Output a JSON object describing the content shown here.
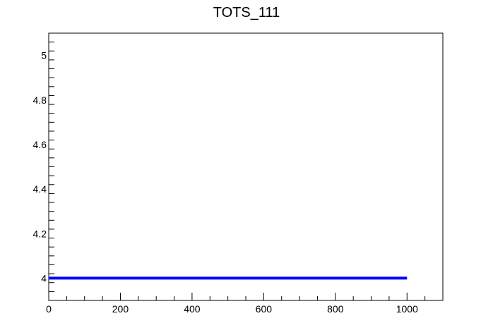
{
  "chart_data": {
    "type": "line",
    "title": "TOTS_111",
    "xlabel": "",
    "ylabel": "",
    "xlim": [
      0,
      1100
    ],
    "ylim": [
      3.9,
      5.1
    ],
    "x_ticks": [
      0,
      200,
      400,
      600,
      800,
      1000
    ],
    "y_ticks": [
      4,
      4.2,
      4.4,
      4.6,
      4.8,
      5
    ],
    "x_tick_labels": [
      "0",
      "200",
      "400",
      "600",
      "800",
      "1000"
    ],
    "y_tick_labels": [
      "4",
      "4.2",
      "4.4",
      "4.6",
      "4.8",
      "5"
    ],
    "grid": false,
    "series": [
      {
        "color": "#0000ff",
        "x": [
          0,
          1000
        ],
        "y": [
          4,
          4
        ]
      }
    ]
  }
}
